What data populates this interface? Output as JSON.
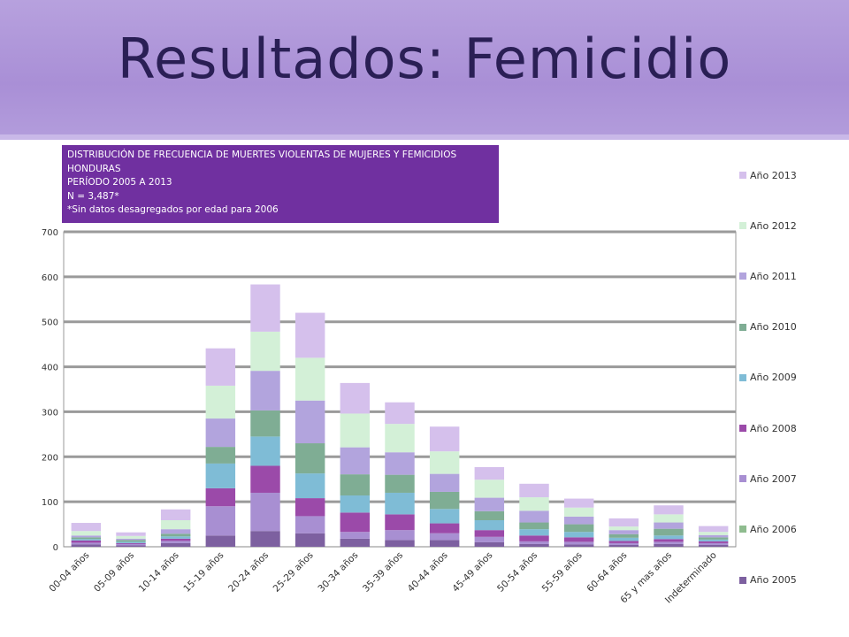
{
  "slide": {
    "title": "Resultados: Femicidio"
  },
  "chart_data": {
    "type": "bar",
    "stacked": true,
    "title_lines": [
      "DISTRIBUCIÓN DE FRECUENCIA DE MUERTES VIOLENTAS DE MUJERES Y FEMICIDIOS",
      "HONDURAS",
      "PERÍODO 2005 A 2013",
      "N = 3,487*",
      "*Sin datos desagregados por edad para 2006"
    ],
    "categories": [
      "00-04 años",
      "05-09 años",
      "10-14 años",
      "15-19 años",
      "20-24 años",
      "25-29 años",
      "30-34 años",
      "35-39 años",
      "40-44 años",
      "45-49 años",
      "50-54 años",
      "55-59 años",
      "60-64 años",
      "65 y mas años",
      "Indeterminado"
    ],
    "ylim": [
      0,
      700
    ],
    "yticks": [
      "0",
      "100",
      "200",
      "300",
      "400",
      "500",
      "600",
      "700"
    ],
    "ytick_values": [
      0,
      100,
      200,
      300,
      400,
      500,
      600,
      700
    ],
    "grid": true,
    "legend_position": "right",
    "series": [
      {
        "name": "Año 2005",
        "color": "#7d60a0",
        "values": [
          5,
          3,
          8,
          25,
          35,
          30,
          18,
          15,
          15,
          10,
          6,
          5,
          4,
          6,
          4
        ]
      },
      {
        "name": "Año 2006",
        "color": "#8fbc8f",
        "values": [
          0,
          0,
          0,
          0,
          0,
          0,
          0,
          0,
          0,
          0,
          0,
          0,
          0,
          0,
          0
        ]
      },
      {
        "name": "Año 2007",
        "color": "#a88fd2",
        "values": [
          4,
          3,
          5,
          65,
          85,
          38,
          15,
          22,
          15,
          12,
          6,
          6,
          4,
          5,
          4
        ]
      },
      {
        "name": "Año 2008",
        "color": "#9b4aa9",
        "values": [
          5,
          2,
          5,
          40,
          60,
          40,
          43,
          35,
          22,
          15,
          13,
          10,
          5,
          6,
          4
        ]
      },
      {
        "name": "Año 2009",
        "color": "#7fbcd6",
        "values": [
          3,
          3,
          5,
          55,
          65,
          55,
          38,
          48,
          32,
          22,
          14,
          12,
          7,
          8,
          4
        ]
      },
      {
        "name": "Año 2010",
        "color": "#7fad94",
        "values": [
          4,
          4,
          6,
          37,
          58,
          67,
          47,
          40,
          38,
          20,
          15,
          17,
          8,
          15,
          5
        ]
      },
      {
        "name": "Año 2011",
        "color": "#b2a4dd",
        "values": [
          4,
          3,
          10,
          63,
          88,
          95,
          60,
          50,
          40,
          30,
          26,
          17,
          9,
          14,
          5
        ]
      },
      {
        "name": "Año 2012",
        "color": "#d3f0d7",
        "values": [
          10,
          6,
          20,
          73,
          87,
          95,
          75,
          63,
          50,
          40,
          30,
          20,
          8,
          18,
          7
        ]
      },
      {
        "name": "Año 2013",
        "color": "#d5c0ec",
        "values": [
          18,
          8,
          24,
          83,
          105,
          100,
          68,
          48,
          55,
          28,
          30,
          20,
          18,
          20,
          13
        ]
      }
    ]
  }
}
